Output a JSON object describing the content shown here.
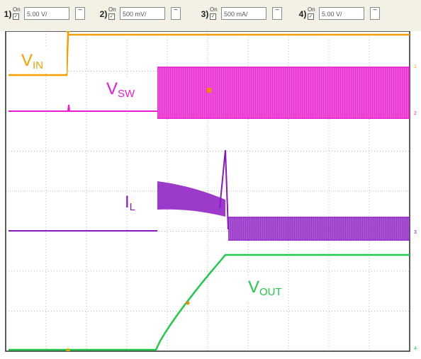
{
  "channels": [
    {
      "num": "1)",
      "on": "On",
      "scale": "5.00 V/",
      "color": "#f5a000"
    },
    {
      "num": "2)",
      "on": "On",
      "scale": "500 mV/",
      "color": "#e81ccf"
    },
    {
      "num": "3)",
      "on": "On",
      "scale": "500 mA/",
      "color": "#8a18c2"
    },
    {
      "num": "4)",
      "on": "On",
      "scale": "5.00 V/",
      "color": "#22c94a"
    }
  ],
  "coupling_symbol": "~",
  "labels": {
    "vin": {
      "main": "V",
      "sub": "IN"
    },
    "vsw": {
      "main": "V",
      "sub": "SW"
    },
    "il": {
      "main": "I",
      "sub": "L"
    },
    "vout": {
      "main": "V",
      "sub": "OUT"
    }
  },
  "markers": {
    "m1": "1",
    "m2": "2",
    "m3": "3",
    "m4": "4"
  },
  "colors": {
    "vin": "#f5a000",
    "vsw": "#e81ccf",
    "il": "#8a18c2",
    "vout": "#22c94a",
    "grid": "#b9b9b9",
    "frame": "#2a2a2a",
    "trigger": "#f5a000"
  }
}
